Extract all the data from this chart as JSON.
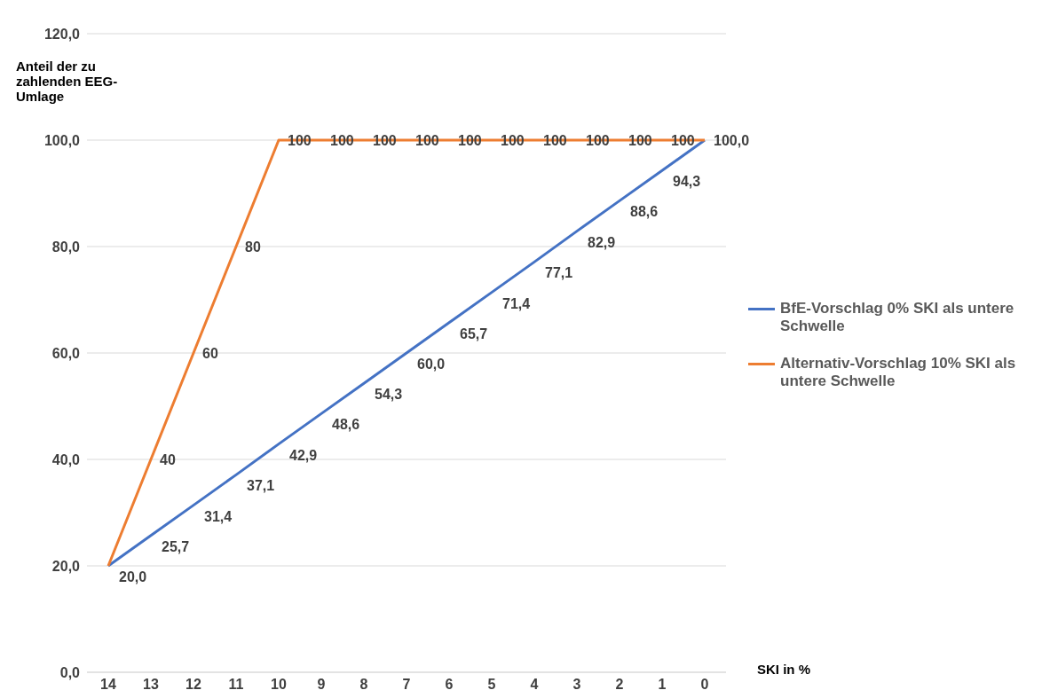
{
  "chart_data": {
    "type": "line",
    "ylabel": "Anteil der zu zahlenden EEG-Umlage",
    "xlabel": "SKI in %",
    "categories": [
      "14",
      "13",
      "12",
      "11",
      "10",
      "9",
      "8",
      "7",
      "6",
      "5",
      "4",
      "3",
      "2",
      "1",
      "0"
    ],
    "series": [
      {
        "name": "BfE-Vorschlag 0% SKI als untere Schwelle",
        "color": "#4472c4",
        "values": [
          20,
          25.7,
          31.4,
          37.1,
          42.9,
          48.6,
          54.3,
          60,
          65.7,
          71.4,
          77.1,
          82.9,
          88.6,
          94.3,
          100
        ],
        "value_labels": [
          "20,0",
          "25,7",
          "31,4",
          "37,1",
          "42,9",
          "48,6",
          "54,3",
          "60,0",
          "65,7",
          "71,4",
          "77,1",
          "82,9",
          "88,6",
          "94,3",
          "100,0"
        ]
      },
      {
        "name": "Alternativ-Vorschlag 10% SKI als untere Schwelle",
        "color": "#ed7d31",
        "values": [
          20,
          40,
          60,
          80,
          100,
          100,
          100,
          100,
          100,
          100,
          100,
          100,
          100,
          100,
          100
        ],
        "value_labels": [
          null,
          "40",
          "60",
          "80",
          "100",
          "100",
          "100",
          "100",
          "100",
          "100",
          "100",
          "100",
          "100",
          "100",
          null
        ]
      }
    ],
    "ylim": [
      0,
      120
    ],
    "yticks": [
      {
        "value": 0,
        "label": "0,0"
      },
      {
        "value": 20,
        "label": "20,0"
      },
      {
        "value": 40,
        "label": "40,0"
      },
      {
        "value": 60,
        "label": "60,0"
      },
      {
        "value": 80,
        "label": "80,0"
      },
      {
        "value": 100,
        "label": "100,0"
      },
      {
        "value": 120,
        "label": "120,0"
      }
    ],
    "grid": "y",
    "legend": "right",
    "marker": "none",
    "line_style": "solid"
  }
}
